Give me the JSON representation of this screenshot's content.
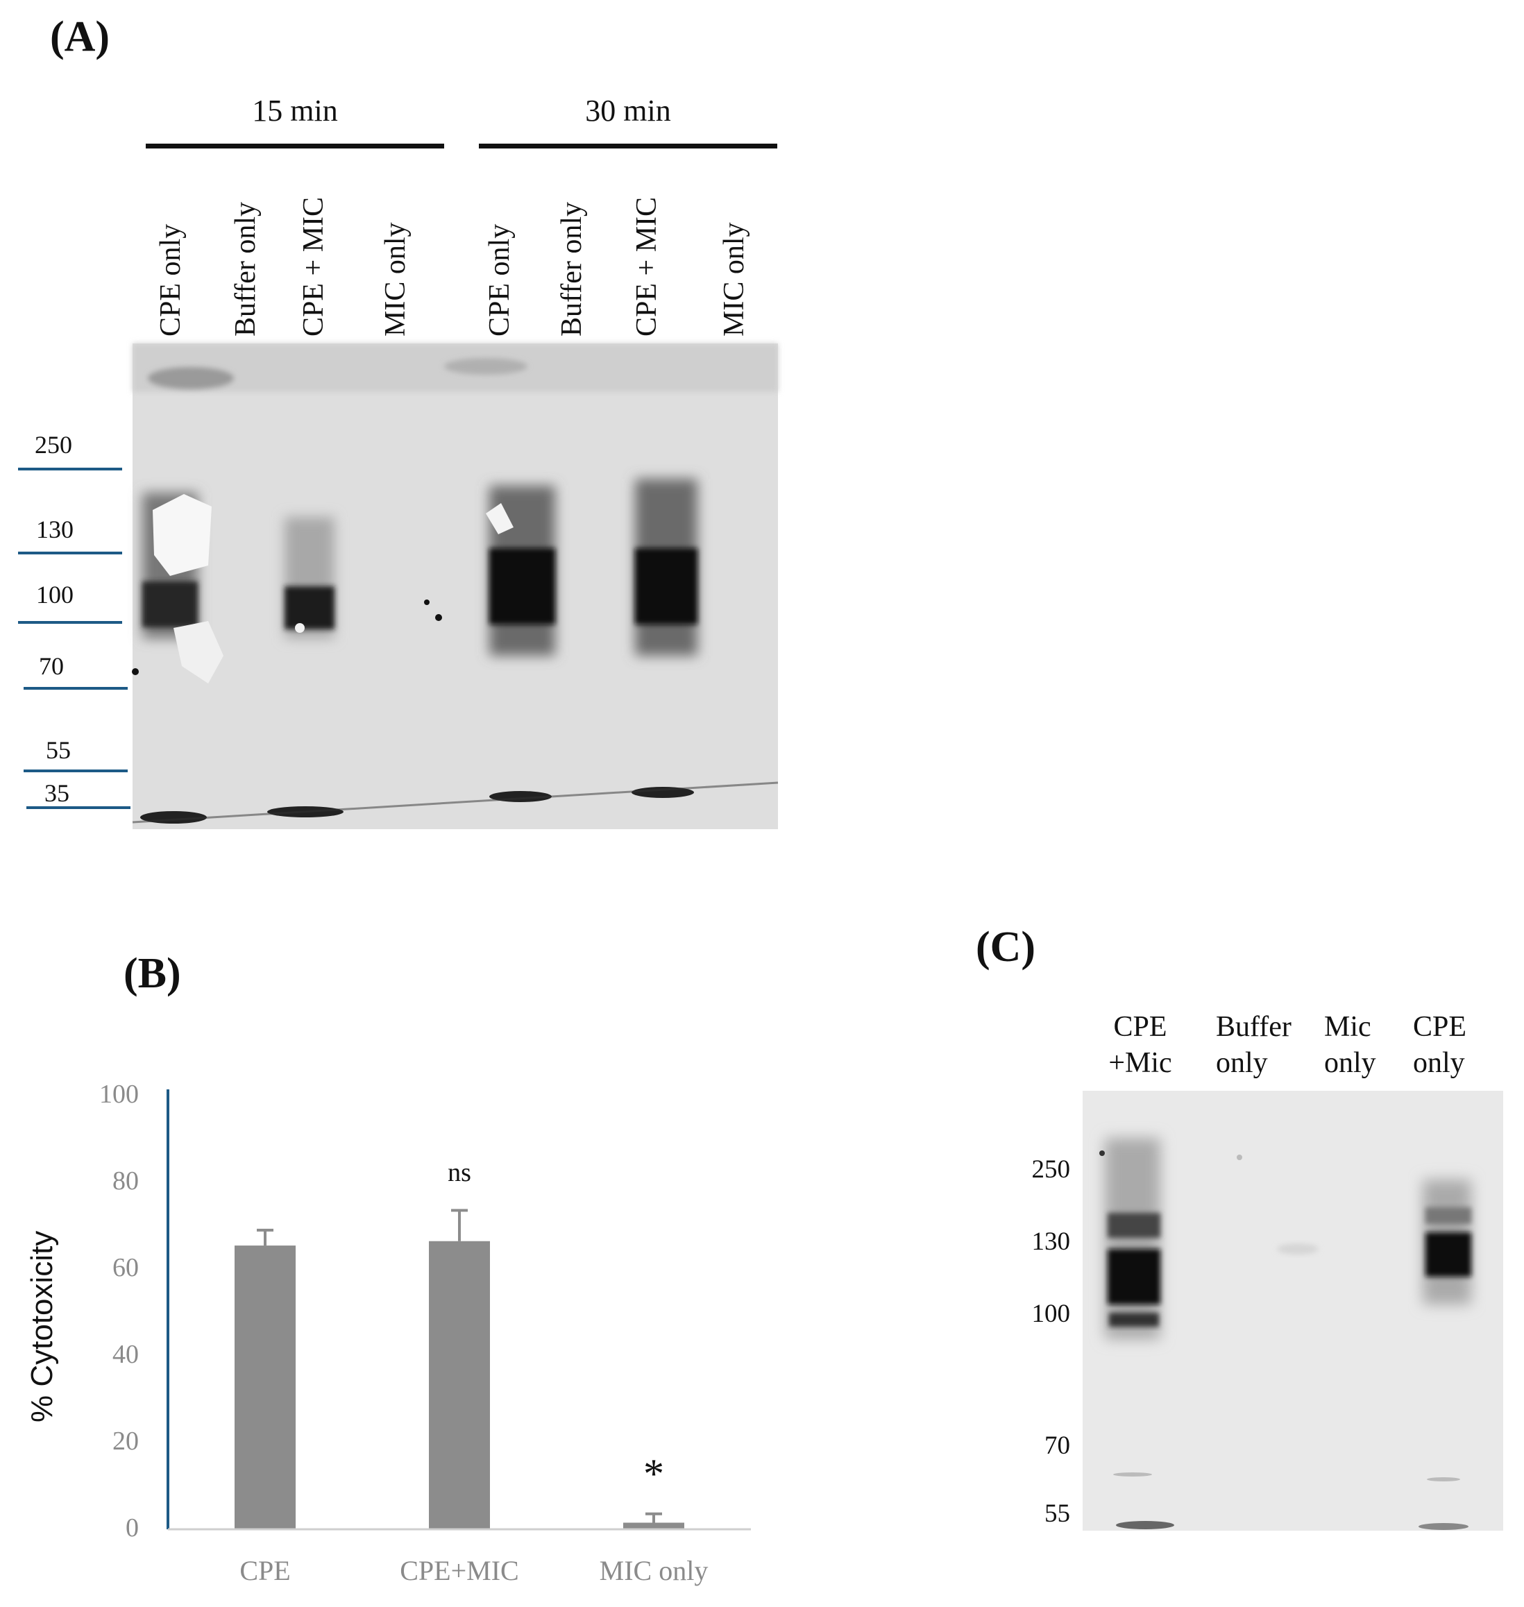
{
  "panel_a": {
    "label": "(A)",
    "groups": [
      {
        "label": "15 min"
      },
      {
        "label": "30 min"
      }
    ],
    "lanes": [
      "CPE only",
      "Buffer only",
      "CPE + MIC",
      "MIC only",
      "CPE only",
      "Buffer only",
      "CPE + MIC",
      "MIC only"
    ],
    "markers": [
      "250",
      "130",
      "100",
      "70",
      "55",
      "35"
    ]
  },
  "panel_b": {
    "label": "(B)",
    "chart_data": {
      "type": "bar",
      "categories": [
        "CPE",
        "CPE+MIC",
        "MIC only"
      ],
      "values": [
        64.5,
        65.5,
        1.5
      ],
      "errors": [
        3.5,
        7,
        2
      ],
      "annotations": [
        "",
        "ns",
        "*"
      ],
      "ylabel": "% Cytotoxicity",
      "ylim": [
        0,
        100
      ],
      "yticks": [
        "0",
        "20",
        "40",
        "60",
        "80",
        "100"
      ],
      "bar_color": "#8c8c8c",
      "axis_color": "#1d5a86"
    }
  },
  "panel_c": {
    "label": "(C)",
    "lanes": [
      {
        "line1": "CPE",
        "line2": "+Mic"
      },
      {
        "line1": "Buffer",
        "line2": "only"
      },
      {
        "line1": "Mic",
        "line2": "only"
      },
      {
        "line1": "CPE",
        "line2": "only"
      }
    ],
    "markers": [
      "250",
      "130",
      "100",
      "70",
      "55"
    ]
  }
}
